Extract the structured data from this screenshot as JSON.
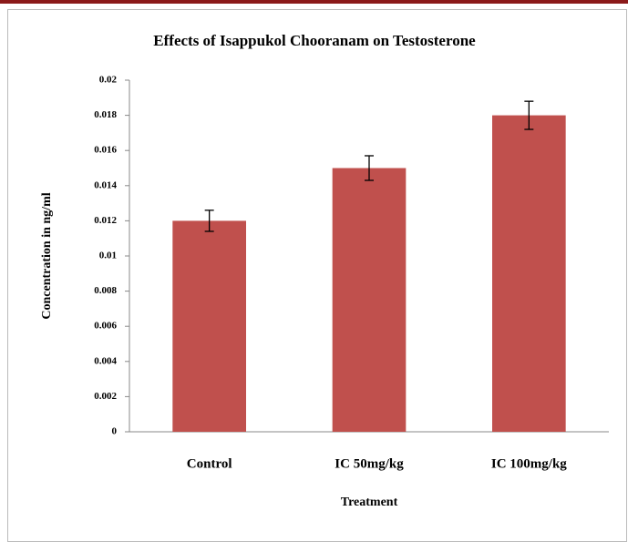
{
  "chart_data": {
    "type": "bar",
    "title": "Effects of Isappukol Chooranam on Testosterone",
    "xlabel": "Treatment",
    "ylabel": "Concentration in ng/ml",
    "categories": [
      "Control",
      "IC 50mg/kg",
      "IC 100mg/kg"
    ],
    "values": [
      0.012,
      0.015,
      0.018
    ],
    "errors": [
      0.0006,
      0.0007,
      0.0008
    ],
    "color": "#c0504d",
    "ylim": [
      0,
      0.02
    ],
    "yticks": [
      0,
      0.002,
      0.004,
      0.006,
      0.008,
      0.01,
      0.012,
      0.014,
      0.016,
      0.018,
      0.02
    ],
    "grid": false
  }
}
